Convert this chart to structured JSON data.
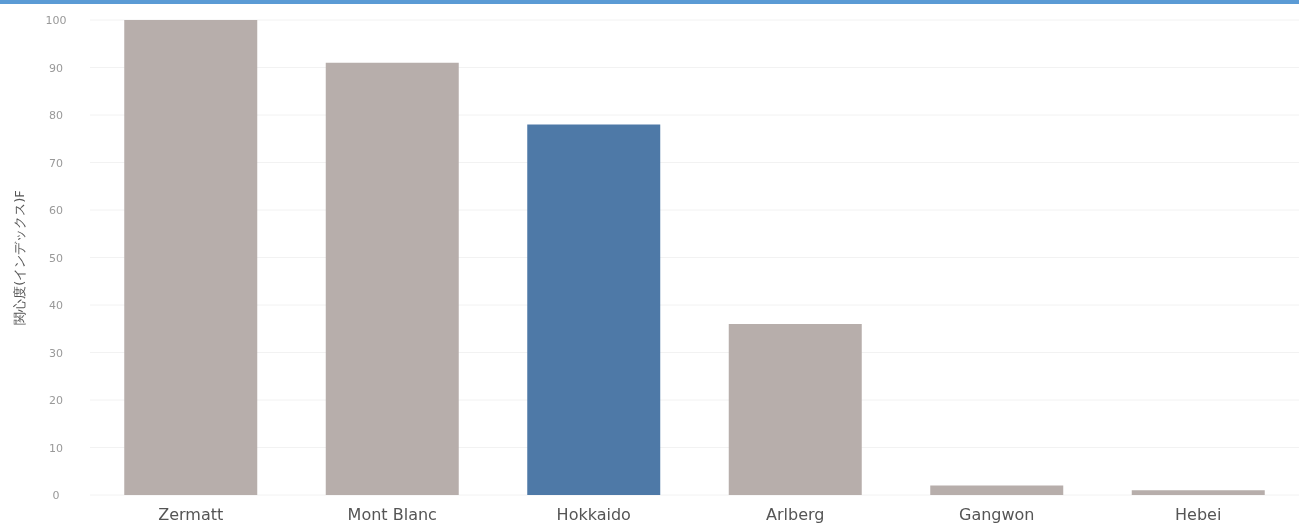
{
  "chart_data": {
    "type": "bar",
    "ylabel": "関心度(インデックス)F",
    "categories": [
      "Zermatt",
      "Mont Blanc",
      "Hokkaido",
      "Arlberg",
      "Gangwon",
      "Hebei"
    ],
    "values": [
      100,
      91,
      78,
      36,
      2,
      1
    ],
    "colors": [
      "#b7aeab",
      "#b7aeab",
      "#4e79a7",
      "#b7aeab",
      "#b7aeab",
      "#b7aeab"
    ],
    "ylim": [
      0,
      100
    ],
    "yticks": [
      0,
      10,
      20,
      30,
      40,
      50,
      60,
      70,
      80,
      90,
      100
    ],
    "grid": "y"
  }
}
